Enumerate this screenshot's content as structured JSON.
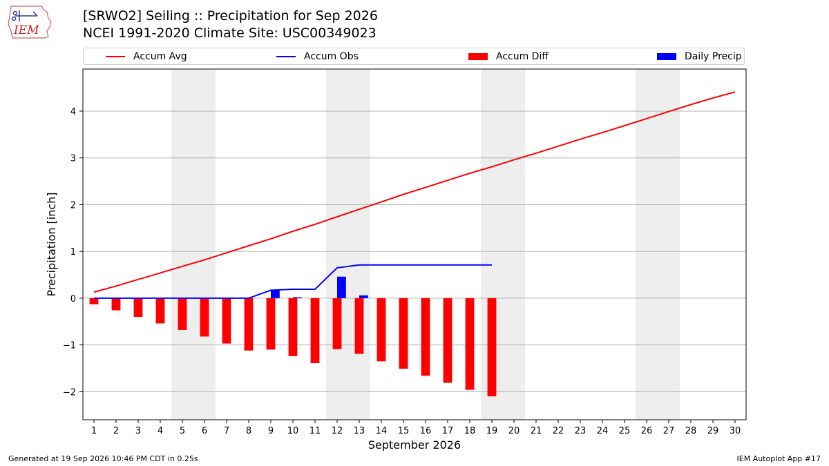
{
  "header": {
    "title_line1": "[SRWO2] Seiling :: Precipitation for Sep 2026",
    "title_line2": "NCEI 1991-2020 Climate Site: USC00349023",
    "logo_text": "IEM"
  },
  "legend": {
    "items": [
      {
        "label": "Accum Avg",
        "kind": "line",
        "color": "#ff0000"
      },
      {
        "label": "Accum Obs",
        "kind": "line",
        "color": "#0000ff"
      },
      {
        "label": "Accum Diff",
        "kind": "bar",
        "color": "#ff0000"
      },
      {
        "label": "Daily Precip",
        "kind": "bar",
        "color": "#0000ff"
      }
    ]
  },
  "chart_data": {
    "type": "bar",
    "xlabel": "September 2026",
    "ylabel": "Precipitation [inch]",
    "ylim": [
      -2.6,
      4.9
    ],
    "yticks": [
      -2,
      -1,
      0,
      1,
      2,
      3,
      4
    ],
    "ytick_labels": [
      "−2",
      "−1",
      "0",
      "1",
      "2",
      "3",
      "4"
    ],
    "x_days": [
      1,
      2,
      3,
      4,
      5,
      6,
      7,
      8,
      9,
      10,
      11,
      12,
      13,
      14,
      15,
      16,
      17,
      18,
      19,
      20,
      21,
      22,
      23,
      24,
      25,
      26,
      27,
      28,
      29,
      30
    ],
    "weekend_shading": [
      [
        5,
        6
      ],
      [
        12,
        13
      ],
      [
        19,
        20
      ],
      [
        26,
        27
      ]
    ],
    "grid": "horizontal",
    "series": [
      {
        "name": "Accum Avg",
        "type": "line",
        "color": "#ff0000",
        "x": [
          1,
          2,
          3,
          4,
          5,
          6,
          7,
          8,
          9,
          10,
          11,
          12,
          13,
          14,
          15,
          16,
          17,
          18,
          19,
          20,
          21,
          22,
          23,
          24,
          25,
          26,
          27,
          28,
          29,
          30
        ],
        "values": [
          0.13,
          0.26,
          0.4,
          0.54,
          0.68,
          0.82,
          0.97,
          1.12,
          1.27,
          1.43,
          1.58,
          1.74,
          1.9,
          2.06,
          2.22,
          2.37,
          2.52,
          2.67,
          2.81,
          2.96,
          3.1,
          3.25,
          3.4,
          3.54,
          3.69,
          3.84,
          3.99,
          4.14,
          4.28,
          4.41
        ]
      },
      {
        "name": "Accum Obs",
        "type": "line",
        "color": "#0000ff",
        "x": [
          1,
          2,
          3,
          4,
          5,
          6,
          7,
          8,
          9,
          10,
          11,
          12,
          13,
          14,
          15,
          16,
          17,
          18,
          19
        ],
        "values": [
          0,
          0,
          0,
          0,
          0,
          0,
          0,
          0,
          0.17,
          0.19,
          0.19,
          0.65,
          0.71,
          0.71,
          0.71,
          0.71,
          0.71,
          0.71,
          0.71
        ]
      },
      {
        "name": "Accum Diff",
        "type": "bar",
        "color": "#ff0000",
        "x": [
          1,
          2,
          3,
          4,
          5,
          6,
          7,
          8,
          9,
          10,
          11,
          12,
          13,
          14,
          15,
          16,
          17,
          18,
          19
        ],
        "values": [
          -0.13,
          -0.26,
          -0.4,
          -0.54,
          -0.68,
          -0.82,
          -0.97,
          -1.12,
          -1.1,
          -1.24,
          -1.39,
          -1.09,
          -1.19,
          -1.35,
          -1.51,
          -1.66,
          -1.81,
          -1.96,
          -2.1
        ]
      },
      {
        "name": "Daily Precip",
        "type": "bar",
        "color": "#0000ff",
        "x": [
          9,
          10,
          12,
          13
        ],
        "values": [
          0.17,
          0.02,
          0.46,
          0.06
        ]
      }
    ]
  },
  "footer": {
    "left": "Generated at 19 Sep 2026 10:46 PM CDT in 0.25s",
    "right": "IEM Autoplot App #17"
  }
}
